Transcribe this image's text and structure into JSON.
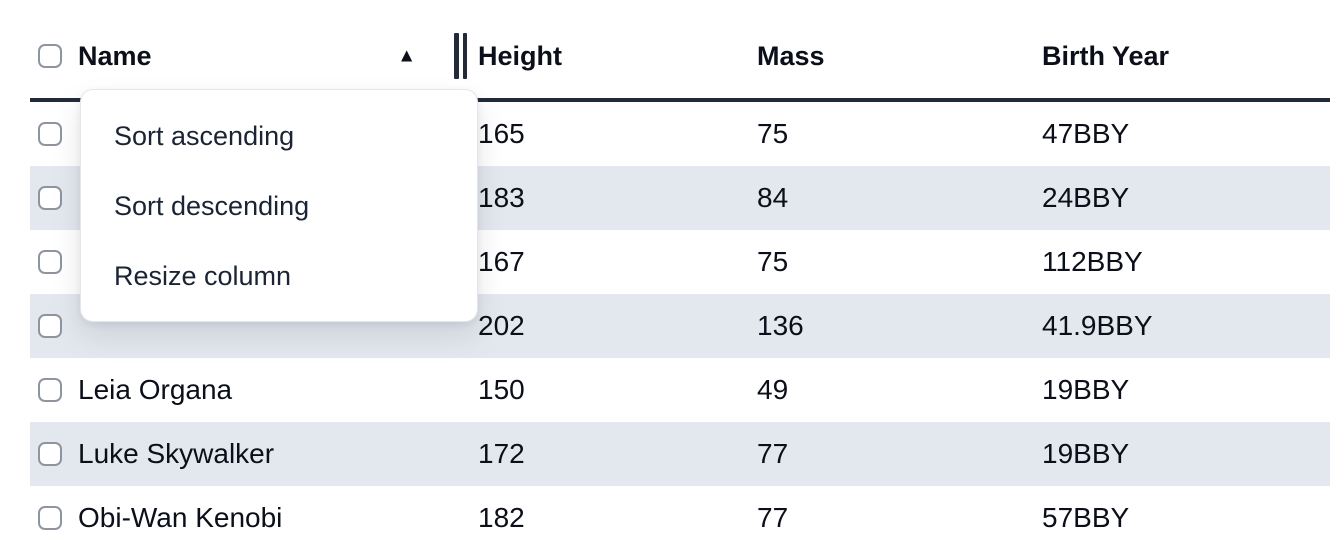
{
  "table": {
    "columns": [
      {
        "key": "name",
        "label": "Name",
        "sort": "ascending"
      },
      {
        "key": "height",
        "label": "Height",
        "sort": null
      },
      {
        "key": "mass",
        "label": "Mass",
        "sort": null
      },
      {
        "key": "birth_year",
        "label": "Birth Year",
        "sort": null
      }
    ],
    "rows": [
      {
        "name": "",
        "height": "165",
        "mass": "75",
        "birth_year": "47BBY",
        "checked": false
      },
      {
        "name": "",
        "height": "183",
        "mass": "84",
        "birth_year": "24BBY",
        "checked": false
      },
      {
        "name": "",
        "height": "167",
        "mass": "75",
        "birth_year": "112BBY",
        "checked": false
      },
      {
        "name": "",
        "height": "202",
        "mass": "136",
        "birth_year": "41.9BBY",
        "checked": false
      },
      {
        "name": "Leia Organa",
        "height": "150",
        "mass": "49",
        "birth_year": "19BBY",
        "checked": false
      },
      {
        "name": "Luke Skywalker",
        "height": "172",
        "mass": "77",
        "birth_year": "19BBY",
        "checked": false
      },
      {
        "name": "Obi-Wan Kenobi",
        "height": "182",
        "mass": "77",
        "birth_year": "57BBY",
        "checked": false
      }
    ],
    "select_all_checked": false
  },
  "context_menu": {
    "open_for_column": "Name",
    "items": [
      {
        "label": "Sort ascending"
      },
      {
        "label": "Sort descending"
      },
      {
        "label": "Resize column"
      }
    ]
  },
  "icons": {
    "sort_ascending": "▲",
    "resize_handle": "double-vertical-bar"
  },
  "colors": {
    "row_stripe": "#e3e8ef",
    "header_border": "#222b3a",
    "text": "#0b0f19",
    "menu_text": "#1b2434",
    "checkbox_border": "#8f959f",
    "menu_border": "#e3e6ec"
  }
}
